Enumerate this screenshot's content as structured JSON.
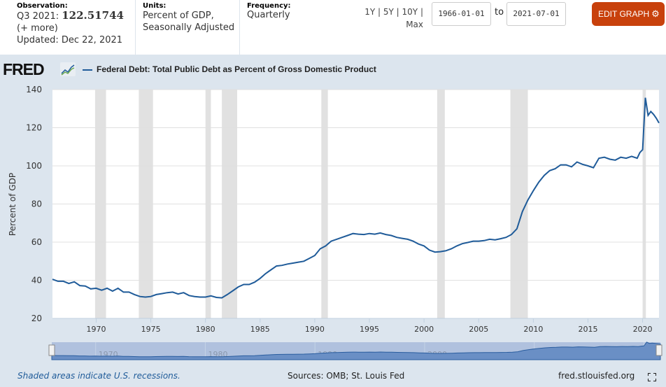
{
  "header": {
    "observation_label": "Observation:",
    "observation_period": "Q3 2021:",
    "observation_value": "122.51744",
    "more_link": "(+ more)",
    "updated": "Updated: Dec 22, 2021",
    "units_label": "Units:",
    "units_line1": "Percent of GDP,",
    "units_line2": "Seasonally Adjusted",
    "frequency_label": "Frequency:",
    "frequency_value": "Quarterly",
    "ranges": [
      "1Y",
      "5Y",
      "10Y",
      "Max"
    ],
    "range_sep": " | ",
    "start_date": "1966-01-01",
    "to_label": "to",
    "end_date": "2021-07-01",
    "edit_button": "EDIT GRAPH"
  },
  "logo": "FRED",
  "footer": {
    "note": "Shaded areas indicate U.S. recessions.",
    "sources": "Sources: OMB; St. Louis Fed",
    "site": "fred.stlouisfed.org"
  },
  "colors": {
    "series": "#1f5b99",
    "recession": "#e1e1e1",
    "edit_button": "#c8410c",
    "panel_bg": "#dce5ee"
  },
  "chart_data": {
    "type": "line",
    "title": "Federal Debt: Total Public Debt as Percent of Gross Domestic Product",
    "xlabel": "",
    "ylabel": "Percent of GDP",
    "ylim": [
      20,
      140
    ],
    "xlim": [
      1966.0,
      2021.5
    ],
    "yticks": [
      20,
      40,
      60,
      80,
      100,
      120,
      140
    ],
    "xticks": [
      1970,
      1975,
      1980,
      1985,
      1990,
      1995,
      2000,
      2005,
      2010,
      2015,
      2020
    ],
    "grid": true,
    "legend": "top-left",
    "recessions": [
      [
        1969.9,
        1970.9
      ],
      [
        1973.9,
        1975.2
      ],
      [
        1980.0,
        1980.5
      ],
      [
        1981.5,
        1982.9
      ],
      [
        1990.6,
        1991.2
      ],
      [
        2001.2,
        2001.9
      ],
      [
        2007.9,
        2009.5
      ],
      [
        2020.0,
        2020.3
      ]
    ],
    "series": [
      {
        "name": "Federal Debt: Total Public Debt as Percent of Gross Domestic Product",
        "x": [
          1966.0,
          1966.5,
          1967.0,
          1967.5,
          1968.0,
          1968.5,
          1969.0,
          1969.5,
          1970.0,
          1970.5,
          1971.0,
          1971.5,
          1972.0,
          1972.5,
          1973.0,
          1973.5,
          1974.0,
          1974.5,
          1975.0,
          1975.5,
          1976.0,
          1976.5,
          1977.0,
          1977.5,
          1978.0,
          1978.5,
          1979.0,
          1979.5,
          1980.0,
          1980.5,
          1981.0,
          1981.5,
          1982.0,
          1982.5,
          1983.0,
          1983.5,
          1984.0,
          1984.5,
          1985.0,
          1985.5,
          1986.0,
          1986.5,
          1987.0,
          1987.5,
          1988.0,
          1988.5,
          1989.0,
          1989.5,
          1990.0,
          1990.5,
          1991.0,
          1991.5,
          1992.0,
          1992.5,
          1993.0,
          1993.5,
          1994.0,
          1994.5,
          1995.0,
          1995.5,
          1996.0,
          1996.5,
          1997.0,
          1997.5,
          1998.0,
          1998.5,
          1999.0,
          1999.5,
          2000.0,
          2000.5,
          2001.0,
          2001.5,
          2002.0,
          2002.5,
          2003.0,
          2003.5,
          2004.0,
          2004.5,
          2005.0,
          2005.5,
          2006.0,
          2006.5,
          2007.0,
          2007.5,
          2008.0,
          2008.5,
          2009.0,
          2009.5,
          2010.0,
          2010.5,
          2011.0,
          2011.5,
          2012.0,
          2012.5,
          2013.0,
          2013.5,
          2014.0,
          2014.5,
          2015.0,
          2015.5,
          2016.0,
          2016.5,
          2017.0,
          2017.5,
          2018.0,
          2018.5,
          2019.0,
          2019.5,
          2019.75,
          2020.0,
          2020.25,
          2020.5,
          2020.75,
          2021.0,
          2021.25,
          2021.5
        ],
        "y": [
          40.5,
          39.5,
          39.5,
          38.3,
          39.2,
          37.2,
          37.0,
          35.5,
          35.8,
          34.8,
          35.8,
          34.3,
          35.8,
          33.8,
          33.8,
          32.5,
          31.5,
          31.2,
          31.5,
          32.5,
          33.0,
          33.5,
          33.8,
          32.8,
          33.5,
          32.0,
          31.5,
          31.2,
          31.2,
          31.8,
          31.0,
          30.8,
          32.5,
          34.5,
          36.5,
          37.8,
          37.8,
          39.0,
          41.0,
          43.5,
          45.5,
          47.5,
          47.8,
          48.5,
          49.0,
          49.5,
          50.0,
          51.5,
          53.0,
          56.5,
          58.0,
          60.5,
          61.5,
          62.5,
          63.5,
          64.5,
          64.2,
          64.0,
          64.5,
          64.2,
          64.8,
          64.0,
          63.5,
          62.5,
          62.0,
          61.5,
          60.5,
          59.0,
          58.0,
          55.8,
          54.8,
          55.0,
          55.5,
          56.5,
          58.0,
          59.2,
          59.8,
          60.5,
          60.5,
          60.8,
          61.5,
          61.2,
          61.8,
          62.5,
          64.0,
          67.0,
          76.0,
          82.0,
          87.0,
          91.5,
          95.0,
          97.5,
          98.5,
          100.5,
          100.5,
          99.5,
          102.0,
          100.8,
          100.0,
          99.0,
          104.0,
          104.5,
          103.5,
          103.0,
          104.5,
          104.0,
          105.0,
          104.0,
          107.0,
          108.5,
          135.7,
          126.5,
          128.5,
          127.0,
          125.0,
          122.5
        ]
      }
    ]
  }
}
